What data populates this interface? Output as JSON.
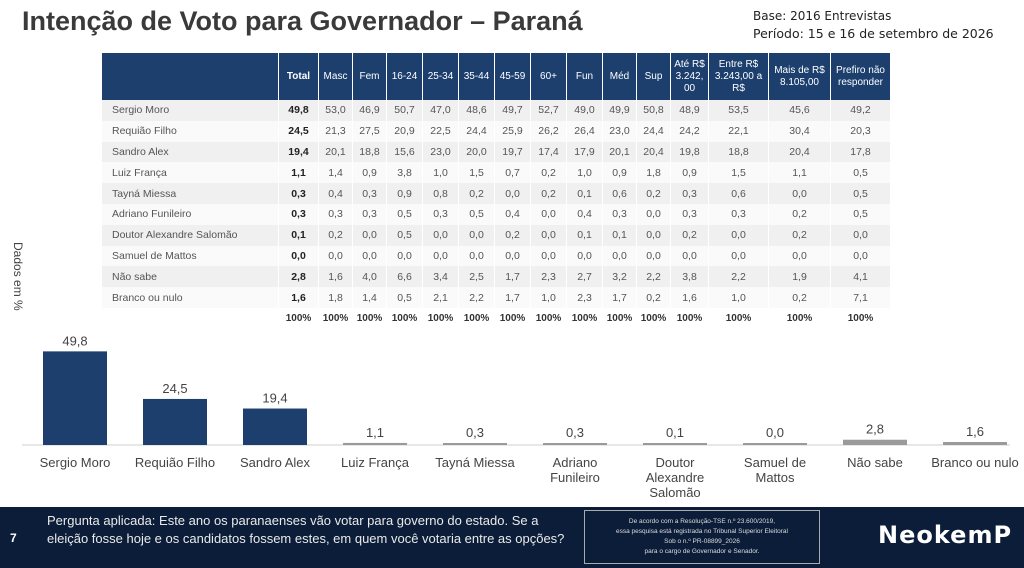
{
  "title": "Intenção de Voto para Governador – Paraná",
  "base": "Base: 2016 Entrevistas",
  "periodo": "Período: 15 e 16 de setembro de 2026",
  "ylabel": "Dados em %",
  "table": {
    "columns": [
      "",
      "Total",
      "Masc",
      "Fem",
      "16-24",
      "25-34",
      "35-44",
      "45-59",
      "60+",
      "Fun",
      "Méd",
      "Sup",
      "Até R$ 3.242, 00",
      "Entre R$ 3.243,00 a R$",
      "Mais de R$ 8.105,00",
      "Prefiro não responder"
    ],
    "rows": [
      [
        "Sergio Moro",
        "49,8",
        "53,0",
        "46,9",
        "50,7",
        "47,0",
        "48,6",
        "49,7",
        "52,7",
        "49,0",
        "49,9",
        "50,8",
        "48,9",
        "53,5",
        "45,6",
        "49,2"
      ],
      [
        "Requião Filho",
        "24,5",
        "21,3",
        "27,5",
        "20,9",
        "22,5",
        "24,4",
        "25,9",
        "26,2",
        "26,4",
        "23,0",
        "24,4",
        "24,2",
        "22,1",
        "30,4",
        "20,3"
      ],
      [
        "Sandro Alex",
        "19,4",
        "20,1",
        "18,8",
        "15,6",
        "23,0",
        "20,0",
        "19,7",
        "17,4",
        "17,9",
        "20,1",
        "20,4",
        "19,8",
        "18,8",
        "20,4",
        "17,8"
      ],
      [
        "Luiz França",
        "1,1",
        "1,4",
        "0,9",
        "3,8",
        "1,0",
        "1,5",
        "0,7",
        "0,2",
        "1,0",
        "0,9",
        "1,8",
        "0,9",
        "1,5",
        "1,1",
        "0,5"
      ],
      [
        "Tayná Miessa",
        "0,3",
        "0,4",
        "0,3",
        "0,9",
        "0,8",
        "0,2",
        "0,0",
        "0,2",
        "0,1",
        "0,6",
        "0,2",
        "0,3",
        "0,6",
        "0,0",
        "0,5"
      ],
      [
        "Adriano Funileiro",
        "0,3",
        "0,3",
        "0,3",
        "0,5",
        "0,3",
        "0,5",
        "0,4",
        "0,0",
        "0,4",
        "0,3",
        "0,0",
        "0,3",
        "0,3",
        "0,2",
        "0,5"
      ],
      [
        "Doutor Alexandre Salomão",
        "0,1",
        "0,2",
        "0,0",
        "0,5",
        "0,0",
        "0,0",
        "0,2",
        "0,0",
        "0,1",
        "0,1",
        "0,0",
        "0,2",
        "0,0",
        "0,2",
        "0,0"
      ],
      [
        "Samuel de Mattos",
        "0,0",
        "0,0",
        "0,0",
        "0,0",
        "0,0",
        "0,0",
        "0,0",
        "0,0",
        "0,0",
        "0,0",
        "0,0",
        "0,0",
        "0,0",
        "0,0",
        "0,0"
      ],
      [
        "Não sabe",
        "2,8",
        "1,6",
        "4,0",
        "6,6",
        "3,4",
        "2,5",
        "1,7",
        "2,3",
        "2,7",
        "3,2",
        "2,2",
        "3,8",
        "2,2",
        "1,9",
        "4,1"
      ],
      [
        "Branco ou nulo",
        "1,6",
        "1,8",
        "1,4",
        "0,5",
        "2,1",
        "2,2",
        "1,7",
        "1,0",
        "2,3",
        "1,7",
        "0,2",
        "1,6",
        "1,0",
        "0,2",
        "7,1"
      ]
    ],
    "totals": [
      "",
      "100%",
      "100%",
      "100%",
      "100%",
      "100%",
      "100%",
      "100%",
      "100%",
      "100%",
      "100%",
      "100%",
      "100%",
      "100%",
      "100%",
      "100%"
    ]
  },
  "chart_data": {
    "type": "bar",
    "categories": [
      "Sergio Moro",
      "Requião Filho",
      "Sandro Alex",
      "Luiz França",
      "Tayná Miessa",
      "Adriano Funileiro",
      "Doutor Alexandre Salomão",
      "Samuel de Mattos",
      "Não sabe",
      "Branco ou nulo"
    ],
    "category_lines": [
      [
        "Sergio Moro"
      ],
      [
        "Requião Filho"
      ],
      [
        "Sandro Alex"
      ],
      [
        "Luiz França"
      ],
      [
        "Tayná Miessa"
      ],
      [
        "Adriano",
        "Funileiro"
      ],
      [
        "Doutor",
        "Alexandre",
        "Salomão"
      ],
      [
        "Samuel de",
        "Mattos"
      ],
      [
        "Não sabe"
      ],
      [
        "Branco ou nulo"
      ]
    ],
    "values": [
      49.8,
      24.5,
      19.4,
      1.1,
      0.3,
      0.3,
      0.1,
      0.0,
      2.8,
      1.6
    ],
    "value_labels": [
      "49,8",
      "24,5",
      "19,4",
      "1,1",
      "0,3",
      "0,3",
      "0,1",
      "0,0",
      "2,8",
      "1,6"
    ],
    "bar_colors": [
      "#1c3f6e",
      "#1c3f6e",
      "#1c3f6e",
      "#9a9a9a",
      "#9a9a9a",
      "#9a9a9a",
      "#9a9a9a",
      "#9a9a9a",
      "#9a9a9a",
      "#9a9a9a"
    ],
    "ylabel": "Dados em %",
    "ylim": [
      0,
      50
    ]
  },
  "footer": {
    "page": "7",
    "question": "Pergunta aplicada: Este ano os paranaenses vão votar para governo do estado. Se a eleição fosse hoje e os candidatos fossem estes, em quem você votaria entre as opções?",
    "legal_line1": "De acordo com a Resolução-TSE n.º 23.600/2019,",
    "legal_line2": "essa pesquisa está registrada no Tribunal Superior Eleitoral",
    "legal_line3": "Sob o n.º PR-08899_2026",
    "legal_line4": "para o cargo de Governador e Senador.",
    "brand": "NeokemP"
  },
  "colors": {
    "navy": "#1c3f6e",
    "footer_bg": "#0b1d38",
    "gray_bar": "#9a9a9a"
  }
}
